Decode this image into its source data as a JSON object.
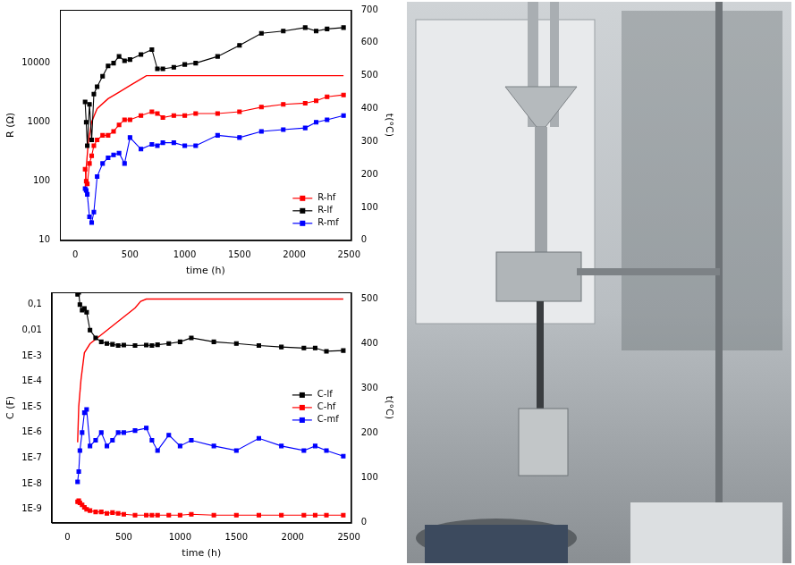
{
  "chart_data": [
    {
      "type": "line",
      "log": "y",
      "grid": false,
      "legend": "lower right",
      "x_label": "time (h)",
      "y_label": "R (Ω)",
      "y2_label": "t(°C)",
      "xlim": [
        -140,
        2520
      ],
      "xticks": [
        0,
        500,
        1000,
        1500,
        2000,
        2500
      ],
      "ylim": [
        10,
        80000
      ],
      "yticks": [
        10,
        100,
        1000,
        10000
      ],
      "y2lim": [
        0,
        700
      ],
      "y2ticks": [
        0,
        100,
        200,
        300,
        400,
        500,
        600,
        700
      ],
      "x": [
        90,
        100,
        110,
        130,
        150,
        170,
        200,
        250,
        300,
        350,
        400,
        450,
        500,
        600,
        700,
        750,
        800,
        900,
        1000,
        1100,
        1300,
        1500,
        1700,
        1900,
        2100,
        2200,
        2300,
        2450
      ],
      "series": [
        {
          "name": "R-hf",
          "color": "#ff0000",
          "marker": "square",
          "line_style": "solid",
          "values": [
            160,
            100,
            90,
            200,
            270,
            400,
            500,
            600,
            600,
            700,
            900,
            1100,
            1100,
            1300,
            1500,
            1400,
            1200,
            1300,
            1300,
            1400,
            1400,
            1500,
            1800,
            2000,
            2100,
            2300,
            2700,
            2900
          ]
        },
        {
          "name": "R-lf",
          "color": "#000000",
          "marker": "square",
          "line_style": "solid",
          "values": [
            2200,
            1000,
            400,
            2000,
            500,
            3000,
            4000,
            6000,
            9000,
            10000,
            13000,
            11000,
            11500,
            14000,
            17000,
            8000,
            8000,
            8500,
            9500,
            10000,
            13000,
            20000,
            32000,
            35000,
            40000,
            35000,
            38000,
            40000
          ]
        },
        {
          "name": "R-mf",
          "color": "#0000ff",
          "marker": "square",
          "line_style": "solid",
          "values": [
            75,
            70,
            60,
            25,
            20,
            30,
            120,
            200,
            250,
            280,
            300,
            200,
            550,
            350,
            420,
            400,
            450,
            450,
            400,
            400,
            600,
            550,
            700,
            750,
            800,
            1000,
            1100,
            1300
          ]
        },
        {
          "color": "#ff0000",
          "marker": "none",
          "line_style": "solid",
          "axis": "y2",
          "x": [
            90,
            100,
            120,
            150,
            200,
            300,
            400,
            500,
            600,
            650,
            700,
            2450
          ],
          "values": [
            150,
            220,
            300,
            360,
            400,
            430,
            450,
            470,
            490,
            500,
            500,
            500
          ]
        }
      ]
    },
    {
      "type": "line",
      "log": "y",
      "grid": false,
      "legend": "center right",
      "x_label": "time (h)",
      "y_label": "C (F)",
      "y2_label": "t(°C)",
      "xlim": [
        -140,
        2520
      ],
      "xticks": [
        0,
        500,
        1000,
        1500,
        2000,
        2500
      ],
      "ylim": [
        3e-10,
        0.3
      ],
      "yticks": [
        {
          "value": 1e-09,
          "label": "1E-9"
        },
        {
          "value": 1e-08,
          "label": "1E-8"
        },
        {
          "value": 1e-07,
          "label": "1E-7"
        },
        {
          "value": 1e-06,
          "label": "1E-6"
        },
        {
          "value": 1e-05,
          "label": "1E-5"
        },
        {
          "value": 0.0001,
          "label": "1E-4"
        },
        {
          "value": 0.001,
          "label": "1E-3"
        },
        {
          "value": 0.01,
          "label": "0,01"
        },
        {
          "value": 0.1,
          "label": "0,1"
        }
      ],
      "y2lim": [
        0,
        515
      ],
      "y2ticks": [
        0,
        100,
        200,
        300,
        400,
        500
      ],
      "x": [
        90,
        100,
        110,
        130,
        150,
        170,
        200,
        250,
        300,
        350,
        400,
        450,
        500,
        600,
        700,
        750,
        800,
        900,
        1000,
        1100,
        1300,
        1500,
        1700,
        1900,
        2100,
        2200,
        2300,
        2450
      ],
      "series": [
        {
          "name": "C-lf",
          "color": "#000000",
          "marker": "square",
          "line_style": "solid",
          "values": [
            0.25,
            0.3,
            0.1,
            0.06,
            0.07,
            0.05,
            0.01,
            0.005,
            0.0035,
            0.003,
            0.0028,
            0.0025,
            0.0026,
            0.0025,
            0.0026,
            0.0025,
            0.0027,
            0.003,
            0.0035,
            0.005,
            0.0035,
            0.003,
            0.0025,
            0.0022,
            0.002,
            0.002,
            0.0015,
            0.0016
          ]
        },
        {
          "name": "C-hf",
          "color": "#ff0000",
          "marker": "square",
          "line_style": "solid",
          "values": [
            2e-09,
            2.2e-09,
            1.8e-09,
            1.5e-09,
            1.2e-09,
            1e-09,
            9e-10,
            8e-10,
            8e-10,
            7e-10,
            7.5e-10,
            7e-10,
            6.5e-10,
            6e-10,
            6e-10,
            6e-10,
            6e-10,
            6e-10,
            6e-10,
            6.5e-10,
            6e-10,
            6e-10,
            6e-10,
            6e-10,
            6e-10,
            6e-10,
            6e-10,
            6e-10
          ]
        },
        {
          "name": "C-mf",
          "color": "#0000ff",
          "marker": "square",
          "line_style": "solid",
          "values": [
            1.2e-08,
            3e-08,
            2e-07,
            1e-06,
            6e-06,
            8e-06,
            3e-07,
            5e-07,
            1e-06,
            3e-07,
            5e-07,
            1e-06,
            1e-06,
            1.2e-06,
            1.5e-06,
            5e-07,
            2e-07,
            8e-07,
            3e-07,
            5e-07,
            3e-07,
            2e-07,
            6e-07,
            3e-07,
            2e-07,
            3e-07,
            2e-07,
            1.2e-07
          ]
        },
        {
          "color": "#ff0000",
          "marker": "none",
          "line_style": "solid",
          "axis": "y2",
          "x": [
            90,
            100,
            120,
            150,
            200,
            300,
            400,
            500,
            600,
            650,
            700,
            2450
          ],
          "values": [
            180,
            260,
            320,
            380,
            400,
            420,
            440,
            460,
            480,
            495,
            500,
            500
          ]
        }
      ]
    }
  ]
}
